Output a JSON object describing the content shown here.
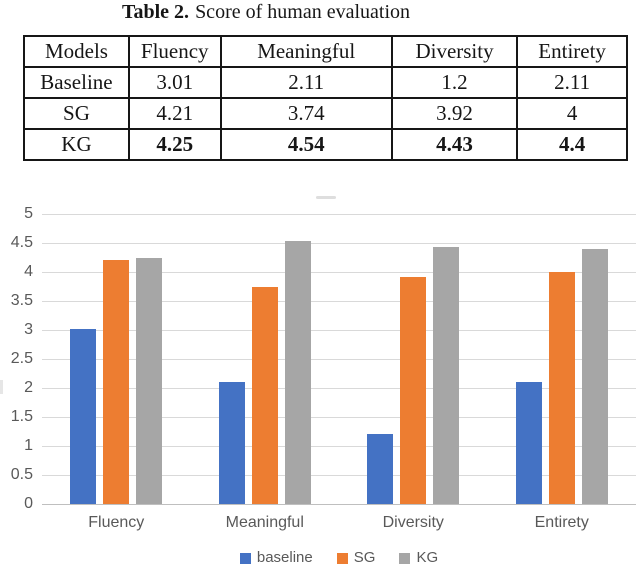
{
  "caption": {
    "label": "Table 2.",
    "text": "Score of human evaluation"
  },
  "table": {
    "headers": [
      "Models",
      "Fluency",
      "Meaningful",
      "Diversity",
      "Entirety"
    ],
    "rows": [
      {
        "model": "Baseline",
        "cells": [
          "3.01",
          "2.11",
          "1.2",
          "2.11"
        ],
        "bold": false
      },
      {
        "model": "SG",
        "cells": [
          "4.21",
          "3.74",
          "3.92",
          "4"
        ],
        "bold": false
      },
      {
        "model": "KG",
        "cells": [
          "4.25",
          "4.54",
          "4.43",
          "4.4"
        ],
        "bold": true
      }
    ]
  },
  "chart_data": {
    "type": "bar",
    "title": "",
    "categories": [
      "Fluency",
      "Meaningful",
      "Diversity",
      "Entirety"
    ],
    "series": [
      {
        "name": "baseline",
        "color": "#4472C4",
        "values": [
          3.01,
          2.11,
          1.2,
          2.11
        ]
      },
      {
        "name": "SG",
        "color": "#ED7D31",
        "values": [
          4.21,
          3.74,
          3.92,
          4.0
        ]
      },
      {
        "name": "KG",
        "color": "#A6A6A6",
        "values": [
          4.25,
          4.54,
          4.43,
          4.4
        ]
      }
    ],
    "xlabel": "",
    "ylabel": "",
    "ylim": [
      0,
      5
    ],
    "ytick_step": 0.5,
    "yticks": [
      "0",
      "0.5",
      "1",
      "1.5",
      "2",
      "2.5",
      "3",
      "3.5",
      "4",
      "4.5",
      "5"
    ],
    "grid": true,
    "legend_position": "bottom",
    "colors": {
      "gridline": "#D9D9D9",
      "axis_line": "#BFBFBF",
      "tick_text": "#595959"
    }
  }
}
